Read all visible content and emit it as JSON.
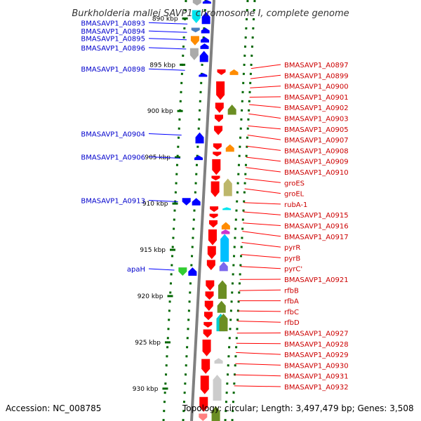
{
  "title": "Burkholderia mallei SAVP1 chromosome I, complete genome",
  "footer": {
    "accession": "Accession: NC_008785",
    "topology": "Topology: circular; Length: 3,497,479 bp; Genes: 3,508"
  },
  "colors": {
    "left_label": "#0000cc",
    "right_label": "#cc0000",
    "leader_left": "#0000ff",
    "leader_right": "#ff0000",
    "tick": "#006600",
    "axis": "#808080",
    "blue_gene": "#0000ff",
    "red_gene": "#ff0000"
  },
  "scale": {
    "start_kbp": 888,
    "end_kbp": 933.5,
    "ticks": [
      "890 kbp",
      "895 kbp",
      "900 kbp",
      "905 kbp",
      "910 kbp",
      "915 kbp",
      "920 kbp",
      "925 kbp",
      "930 kbp"
    ]
  },
  "labels_left": [
    {
      "text": "BMASAVP1_A0893",
      "kbp": 890.6
    },
    {
      "text": "BMASAVP1_A0894",
      "kbp": 891.5
    },
    {
      "text": "BMASAVP1_A0895",
      "kbp": 892.3
    },
    {
      "text": "BMASAVP1_A0896",
      "kbp": 893.3
    },
    {
      "text": "BMASAVP1_A0898",
      "kbp": 895.6
    },
    {
      "text": "BMASAVP1_A0904",
      "kbp": 902.6
    },
    {
      "text": "BMASAVP1_A0906",
      "kbp": 905.1
    },
    {
      "text": "BMASAVP1_A0913",
      "kbp": 909.8
    },
    {
      "text": "apaH",
      "kbp": 917.2
    }
  ],
  "labels_right": [
    {
      "text": "BMASAVP1_A0897",
      "kbp": 895.4
    },
    {
      "text": "BMASAVP1_A0899",
      "kbp": 896.5
    },
    {
      "text": "BMASAVP1_A0900",
      "kbp": 897.5
    },
    {
      "text": "BMASAVP1_A0901",
      "kbp": 898.5
    },
    {
      "text": "BMASAVP1_A0902",
      "kbp": 899.3
    },
    {
      "text": "BMASAVP1_A0903",
      "kbp": 900.3
    },
    {
      "text": "BMASAVP1_A0905",
      "kbp": 901.6
    },
    {
      "text": "BMASAVP1_A0907",
      "kbp": 902.6
    },
    {
      "text": "BMASAVP1_A0908",
      "kbp": 903.8
    },
    {
      "text": "BMASAVP1_A0909",
      "kbp": 905.0
    },
    {
      "text": "BMASAVP1_A0910",
      "kbp": 906.1
    },
    {
      "text": "groES",
      "kbp": 907.3
    },
    {
      "text": "groEL",
      "kbp": 908.4
    },
    {
      "text": "rubA-1",
      "kbp": 909.9
    },
    {
      "text": "BMASAVP1_A0915",
      "kbp": 910.9
    },
    {
      "text": "BMASAVP1_A0916",
      "kbp": 912.1
    },
    {
      "text": "BMASAVP1_A0917",
      "kbp": 913.0
    },
    {
      "text": "pyrR",
      "kbp": 914.2
    },
    {
      "text": "pyrB",
      "kbp": 915.5
    },
    {
      "text": "pyrC'",
      "kbp": 916.8
    },
    {
      "text": "BMASAVP1_A0921",
      "kbp": 918.2
    },
    {
      "text": "rfbB",
      "kbp": 919.4
    },
    {
      "text": "rfbA",
      "kbp": 920.5
    },
    {
      "text": "rfbC",
      "kbp": 921.6
    },
    {
      "text": "rfbD",
      "kbp": 922.7
    },
    {
      "text": "BMASAVP1_A0927",
      "kbp": 924.0
    },
    {
      "text": "BMASAVP1_A0928",
      "kbp": 925.1
    },
    {
      "text": "BMASAVP1_A0929",
      "kbp": 926.1
    },
    {
      "text": "BMASAVP1_A0930",
      "kbp": 927.3
    },
    {
      "text": "BMASAVP1_A0931",
      "kbp": 928.5
    },
    {
      "text": "BMASAVP1_A0932",
      "kbp": 929.7
    }
  ],
  "genes": [
    {
      "lane": -1,
      "strand": "-",
      "start": 888.0,
      "end": 888.6,
      "color": "#aaaaaa"
    },
    {
      "lane": 0,
      "strand": "+",
      "start": 888.0,
      "end": 888.4,
      "color": "#0000ff"
    },
    {
      "lane": -1,
      "strand": "-",
      "start": 889.1,
      "end": 890.5,
      "color": "#00e5ee"
    },
    {
      "lane": 0,
      "strand": "+",
      "start": 889.3,
      "end": 890.6,
      "color": "#0000ff"
    },
    {
      "lane": -1,
      "strand": "-",
      "start": 891.0,
      "end": 891.5,
      "color": "#4a7fbf"
    },
    {
      "lane": 0,
      "strand": "+",
      "start": 891.0,
      "end": 891.6,
      "color": "#0000ff"
    },
    {
      "lane": -1,
      "strand": "-",
      "start": 891.9,
      "end": 892.9,
      "color": "#ff8c00"
    },
    {
      "lane": 0,
      "strand": "+",
      "start": 892.0,
      "end": 892.6,
      "color": "#0000ff"
    },
    {
      "lane": 0,
      "strand": "+",
      "start": 892.7,
      "end": 893.3,
      "color": "#0000ff"
    },
    {
      "lane": -1,
      "strand": "-",
      "start": 893.2,
      "end": 894.5,
      "color": "#aaaaaa"
    },
    {
      "lane": 0,
      "strand": "+",
      "start": 893.5,
      "end": 894.7,
      "color": "#0000ff"
    },
    {
      "lane": 0,
      "strand": "+",
      "start": 895.9,
      "end": 896.3,
      "color": "#0000ff"
    },
    {
      "lane": 1,
      "strand": "-",
      "start": 895.5,
      "end": 896.1,
      "color": "#ff0000"
    },
    {
      "lane": 2,
      "strand": "+",
      "start": 895.5,
      "end": 896.1,
      "color": "#ff8c00"
    },
    {
      "lane": 1,
      "strand": "-",
      "start": 896.8,
      "end": 898.8,
      "color": "#ff0000"
    },
    {
      "lane": 1,
      "strand": "-",
      "start": 899.1,
      "end": 900.2,
      "color": "#ff0000"
    },
    {
      "lane": 2,
      "strand": "+",
      "start": 899.3,
      "end": 900.4,
      "color": "#6b8e23"
    },
    {
      "lane": 1,
      "strand": "-",
      "start": 900.4,
      "end": 901.2,
      "color": "#ff0000"
    },
    {
      "lane": 1,
      "strand": "-",
      "start": 901.6,
      "end": 902.6,
      "color": "#ff0000"
    },
    {
      "lane": 0,
      "strand": "+",
      "start": 902.3,
      "end": 903.5,
      "color": "#0000ff"
    },
    {
      "lane": 1,
      "strand": "-",
      "start": 903.5,
      "end": 904.2,
      "color": "#ff0000"
    },
    {
      "lane": 2,
      "strand": "+",
      "start": 903.6,
      "end": 904.4,
      "color": "#ff8c00"
    },
    {
      "lane": 1,
      "strand": "-",
      "start": 904.4,
      "end": 904.9,
      "color": "#ff0000"
    },
    {
      "lane": 0,
      "strand": "+",
      "start": 904.8,
      "end": 905.3,
      "color": "#0000ff"
    },
    {
      "lane": 1,
      "strand": "-",
      "start": 905.2,
      "end": 906.9,
      "color": "#ff0000"
    },
    {
      "lane": 1,
      "strand": "-",
      "start": 907.0,
      "end": 907.5,
      "color": "#ff0000"
    },
    {
      "lane": 2,
      "strand": "+",
      "start": 907.3,
      "end": 909.2,
      "color": "#bdb76b"
    },
    {
      "lane": 1,
      "strand": "-",
      "start": 907.6,
      "end": 909.3,
      "color": "#ff0000"
    },
    {
      "lane": 0,
      "strand": "+",
      "start": 909.4,
      "end": 910.2,
      "color": "#0000ff"
    },
    {
      "lane": -1,
      "strand": "-",
      "start": 909.4,
      "end": 910.2,
      "color": "#0000ff"
    },
    {
      "lane": 1,
      "strand": "-",
      "start": 910.3,
      "end": 910.9,
      "color": "#ff0000"
    },
    {
      "lane": 2,
      "strand": "+",
      "start": 910.4,
      "end": 910.7,
      "color": "#00e5ee"
    },
    {
      "lane": 1,
      "strand": "-",
      "start": 911.1,
      "end": 911.6,
      "color": "#ff0000"
    },
    {
      "lane": 1,
      "strand": "-",
      "start": 911.8,
      "end": 912.6,
      "color": "#ff0000"
    },
    {
      "lane": 2,
      "strand": "+",
      "start": 912.0,
      "end": 912.8,
      "color": "#ff8c00"
    },
    {
      "lane": 2,
      "strand": "+",
      "start": 912.8,
      "end": 913.3,
      "color": "#cc33cc"
    },
    {
      "lane": 1,
      "strand": "-",
      "start": 912.8,
      "end": 914.5,
      "color": "#ff0000"
    },
    {
      "lane": 2,
      "strand": "+",
      "start": 913.3,
      "end": 916.3,
      "color": "#00bfff"
    },
    {
      "lane": 1,
      "strand": "-",
      "start": 914.6,
      "end": 916.0,
      "color": "#ff0000"
    },
    {
      "lane": 1,
      "strand": "-",
      "start": 916.1,
      "end": 917.2,
      "color": "#ff0000"
    },
    {
      "lane": 2,
      "strand": "+",
      "start": 916.3,
      "end": 917.3,
      "color": "#7b68ee"
    },
    {
      "lane": -1,
      "strand": "-",
      "start": 916.9,
      "end": 917.8,
      "color": "#32cd32"
    },
    {
      "lane": 0,
      "strand": "+",
      "start": 916.9,
      "end": 917.8,
      "color": "#0000ff"
    },
    {
      "lane": 1,
      "strand": "-",
      "start": 918.3,
      "end": 919.4,
      "color": "#ff0000"
    },
    {
      "lane": 2,
      "strand": "+",
      "start": 918.3,
      "end": 920.3,
      "color": "#6b8e23"
    },
    {
      "lane": 1,
      "strand": "-",
      "start": 919.5,
      "end": 920.4,
      "color": "#ff0000"
    },
    {
      "lane": 1,
      "strand": "-",
      "start": 920.5,
      "end": 921.6,
      "color": "#ff0000"
    },
    {
      "lane": 2,
      "strand": "+",
      "start": 920.5,
      "end": 921.8,
      "color": "#6b8e23"
    },
    {
      "lane": 1,
      "strand": "-",
      "start": 921.7,
      "end": 922.6,
      "color": "#ff0000"
    },
    {
      "lane": 2,
      "strand": "+",
      "start": 921.9,
      "end": 923.8,
      "color": "#00ced1"
    },
    {
      "lane": 2,
      "strand": "+",
      "start": 921.9,
      "end": 923.8,
      "color": "#6b8e23",
      "offset": 4
    },
    {
      "lane": 1,
      "strand": "-",
      "start": 922.8,
      "end": 923.4,
      "color": "#ff0000"
    },
    {
      "lane": 1,
      "strand": "-",
      "start": 923.6,
      "end": 924.5,
      "color": "#ff0000"
    },
    {
      "lane": 1,
      "strand": "-",
      "start": 924.7,
      "end": 926.5,
      "color": "#ff0000"
    },
    {
      "lane": 1,
      "strand": "-",
      "start": 926.8,
      "end": 928.4,
      "color": "#ff0000"
    },
    {
      "lane": 2,
      "strand": "+",
      "start": 926.7,
      "end": 927.3,
      "color": "#cccccc"
    },
    {
      "lane": 1,
      "strand": "-",
      "start": 928.6,
      "end": 930.6,
      "color": "#ff0000"
    },
    {
      "lane": 2,
      "strand": "+",
      "start": 928.5,
      "end": 931.3,
      "color": "#cccccc"
    },
    {
      "lane": 1,
      "strand": "-",
      "start": 930.9,
      "end": 932.5,
      "color": "#ff0000"
    },
    {
      "lane": 1,
      "strand": "-",
      "start": 932.7,
      "end": 933.5,
      "color": "#ff8080"
    },
    {
      "lane": 2,
      "strand": "+",
      "start": 931.9,
      "end": 933.5,
      "color": "#6b8e23"
    }
  ]
}
